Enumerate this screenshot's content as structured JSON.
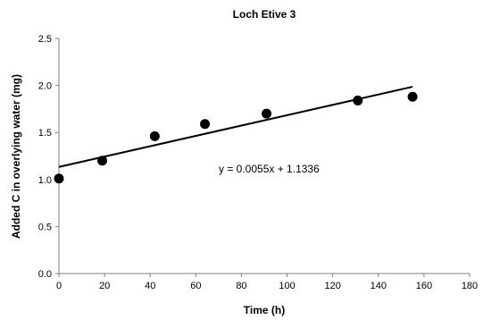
{
  "chart_data": {
    "type": "scatter",
    "title": "Loch Etive 3",
    "xlabel": "Time (h)",
    "ylabel": "Added C in overlying water (mg)",
    "xlim": [
      0,
      180
    ],
    "ylim": [
      0,
      2.5
    ],
    "xticks": [
      0,
      20,
      40,
      60,
      80,
      100,
      120,
      140,
      160,
      180
    ],
    "yticks": [
      0.0,
      0.5,
      1.0,
      1.5,
      2.0,
      2.5
    ],
    "xtick_labels": [
      "0",
      "20",
      "40",
      "60",
      "80",
      "100",
      "120",
      "140",
      "160",
      "180"
    ],
    "ytick_labels": [
      "0.0",
      "0.5",
      "1.0",
      "1.5",
      "2.0",
      "2.5"
    ],
    "grid": false,
    "series": [
      {
        "x": [
          0,
          19,
          42,
          64,
          91,
          131,
          155
        ],
        "y": [
          1.01,
          1.2,
          1.46,
          1.59,
          1.7,
          1.84,
          1.88
        ]
      }
    ],
    "trendline": {
      "type": "linear",
      "slope": 0.0055,
      "intercept": 1.1336,
      "x_range": [
        0,
        155
      ],
      "equation_label": "y = 0.0055x + 1.1336"
    },
    "colors": {
      "marker": "#000000",
      "line": "#000000",
      "axis": "#808080"
    }
  }
}
